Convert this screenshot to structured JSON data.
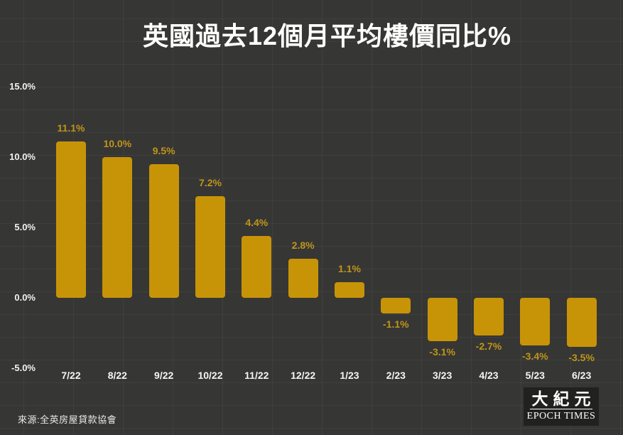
{
  "title": "英國過去12個月平均樓價同比%",
  "source": "來源:全英房屋貸款協會",
  "logo": {
    "cjk": "大紀元",
    "latin": "EPOCH TIMES"
  },
  "colors": {
    "background": "#363634",
    "bar": "#C79408",
    "bar_label": "#BF951A",
    "axis_label": "#F2F2F0",
    "title": "#FFFFFF"
  },
  "chart_data": {
    "type": "bar",
    "title": "英國過去12個月平均樓價同比%",
    "xlabel": "",
    "ylabel": "",
    "categories": [
      "7/22",
      "8/22",
      "9/22",
      "10/22",
      "11/22",
      "12/22",
      "1/23",
      "2/23",
      "3/23",
      "4/23",
      "5/23",
      "6/23"
    ],
    "values": [
      11.1,
      10.0,
      9.5,
      7.2,
      4.4,
      2.8,
      1.1,
      -1.1,
      -3.1,
      -2.7,
      -3.4,
      -3.5
    ],
    "labels": [
      "11.1%",
      "10.0%",
      "9.5%",
      "7.2%",
      "4.4%",
      "2.8%",
      "1.1%",
      "-1.1%",
      "-3.1%",
      "-2.7%",
      "-3.4%",
      "-3.5%"
    ],
    "ylim": [
      -5,
      15
    ],
    "y_ticks": [
      {
        "label": "15.0%",
        "value": 15
      },
      {
        "label": "10.0%",
        "value": 10
      },
      {
        "label": "5.0%",
        "value": 5
      },
      {
        "label": "0.0%",
        "value": 0
      },
      {
        "label": "-5.0%",
        "value": -5
      }
    ],
    "grid": false,
    "legend": false,
    "bar_color": "#C79408",
    "label_color": "#BF951A"
  }
}
